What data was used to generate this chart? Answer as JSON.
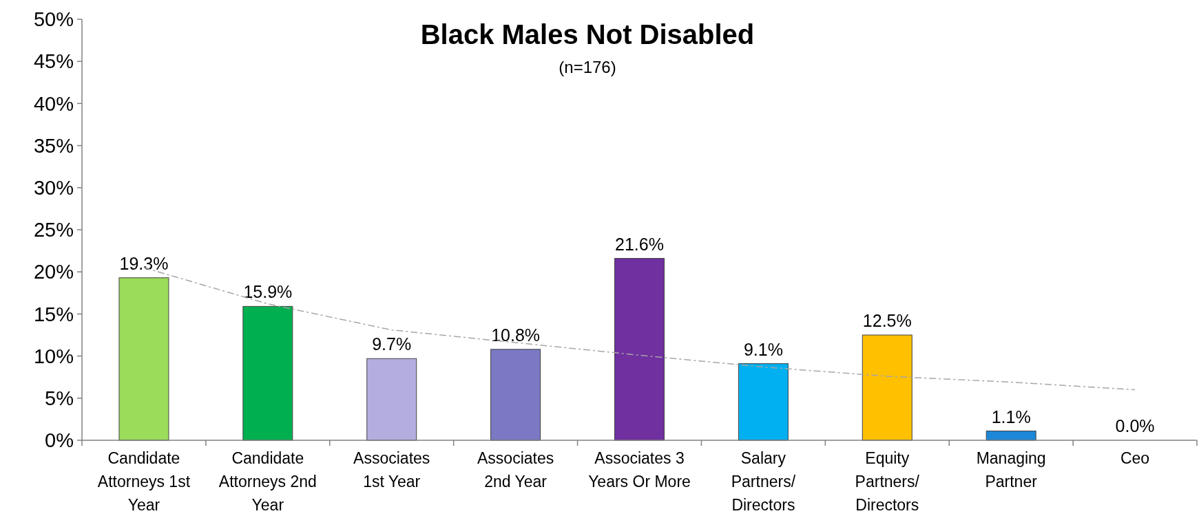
{
  "chart_data": {
    "type": "bar",
    "title": "Black Males Not Disabled",
    "subtitle": "(n=176)",
    "categories": [
      "Candidate Attorneys 1st Year",
      "Candidate Attorneys 2nd Year",
      "Associates 1st Year",
      "Associates 2nd Year",
      "Associates 3 Years Or More",
      "Salary Partners/ Directors",
      "Equity Partners/ Directors",
      "Managing Partner",
      "Ceo"
    ],
    "series": [
      {
        "values": [
          19.3,
          15.9,
          9.7,
          10.8,
          21.6,
          9.1,
          12.5,
          1.1,
          0.0
        ],
        "colors": [
          "#9bdc5a",
          "#00b050",
          "#b4aee0",
          "#7b78c4",
          "#7030a0",
          "#00b0f0",
          "#ffc000",
          "#1e88d8",
          "#1e88d8"
        ],
        "value_labels": [
          "19.3%",
          "15.9%",
          "9.7%",
          "10.8%",
          "21.6%",
          "9.1%",
          "12.5%",
          "1.1%",
          "0.0%"
        ]
      },
      {
        "type": "line",
        "color": "#a6a6a6",
        "line_style": "dashed",
        "values": [
          20.5,
          16.2,
          13.1,
          11.6,
          10.1,
          8.7,
          7.6,
          6.9,
          6.0
        ]
      }
    ],
    "ylim": [
      0,
      50
    ],
    "yticks": [
      {
        "value": 0,
        "label": "0%"
      },
      {
        "value": 5,
        "label": "5%"
      },
      {
        "value": 10,
        "label": "10%"
      },
      {
        "value": 15,
        "label": "15%"
      },
      {
        "value": 20,
        "label": "20%"
      },
      {
        "value": 25,
        "label": "25%"
      },
      {
        "value": 30,
        "label": "30%"
      },
      {
        "value": 35,
        "label": "35%"
      },
      {
        "value": 40,
        "label": "40%"
      },
      {
        "value": 45,
        "label": "45%"
      },
      {
        "value": 50,
        "label": "50%"
      }
    ],
    "grid": false
  }
}
